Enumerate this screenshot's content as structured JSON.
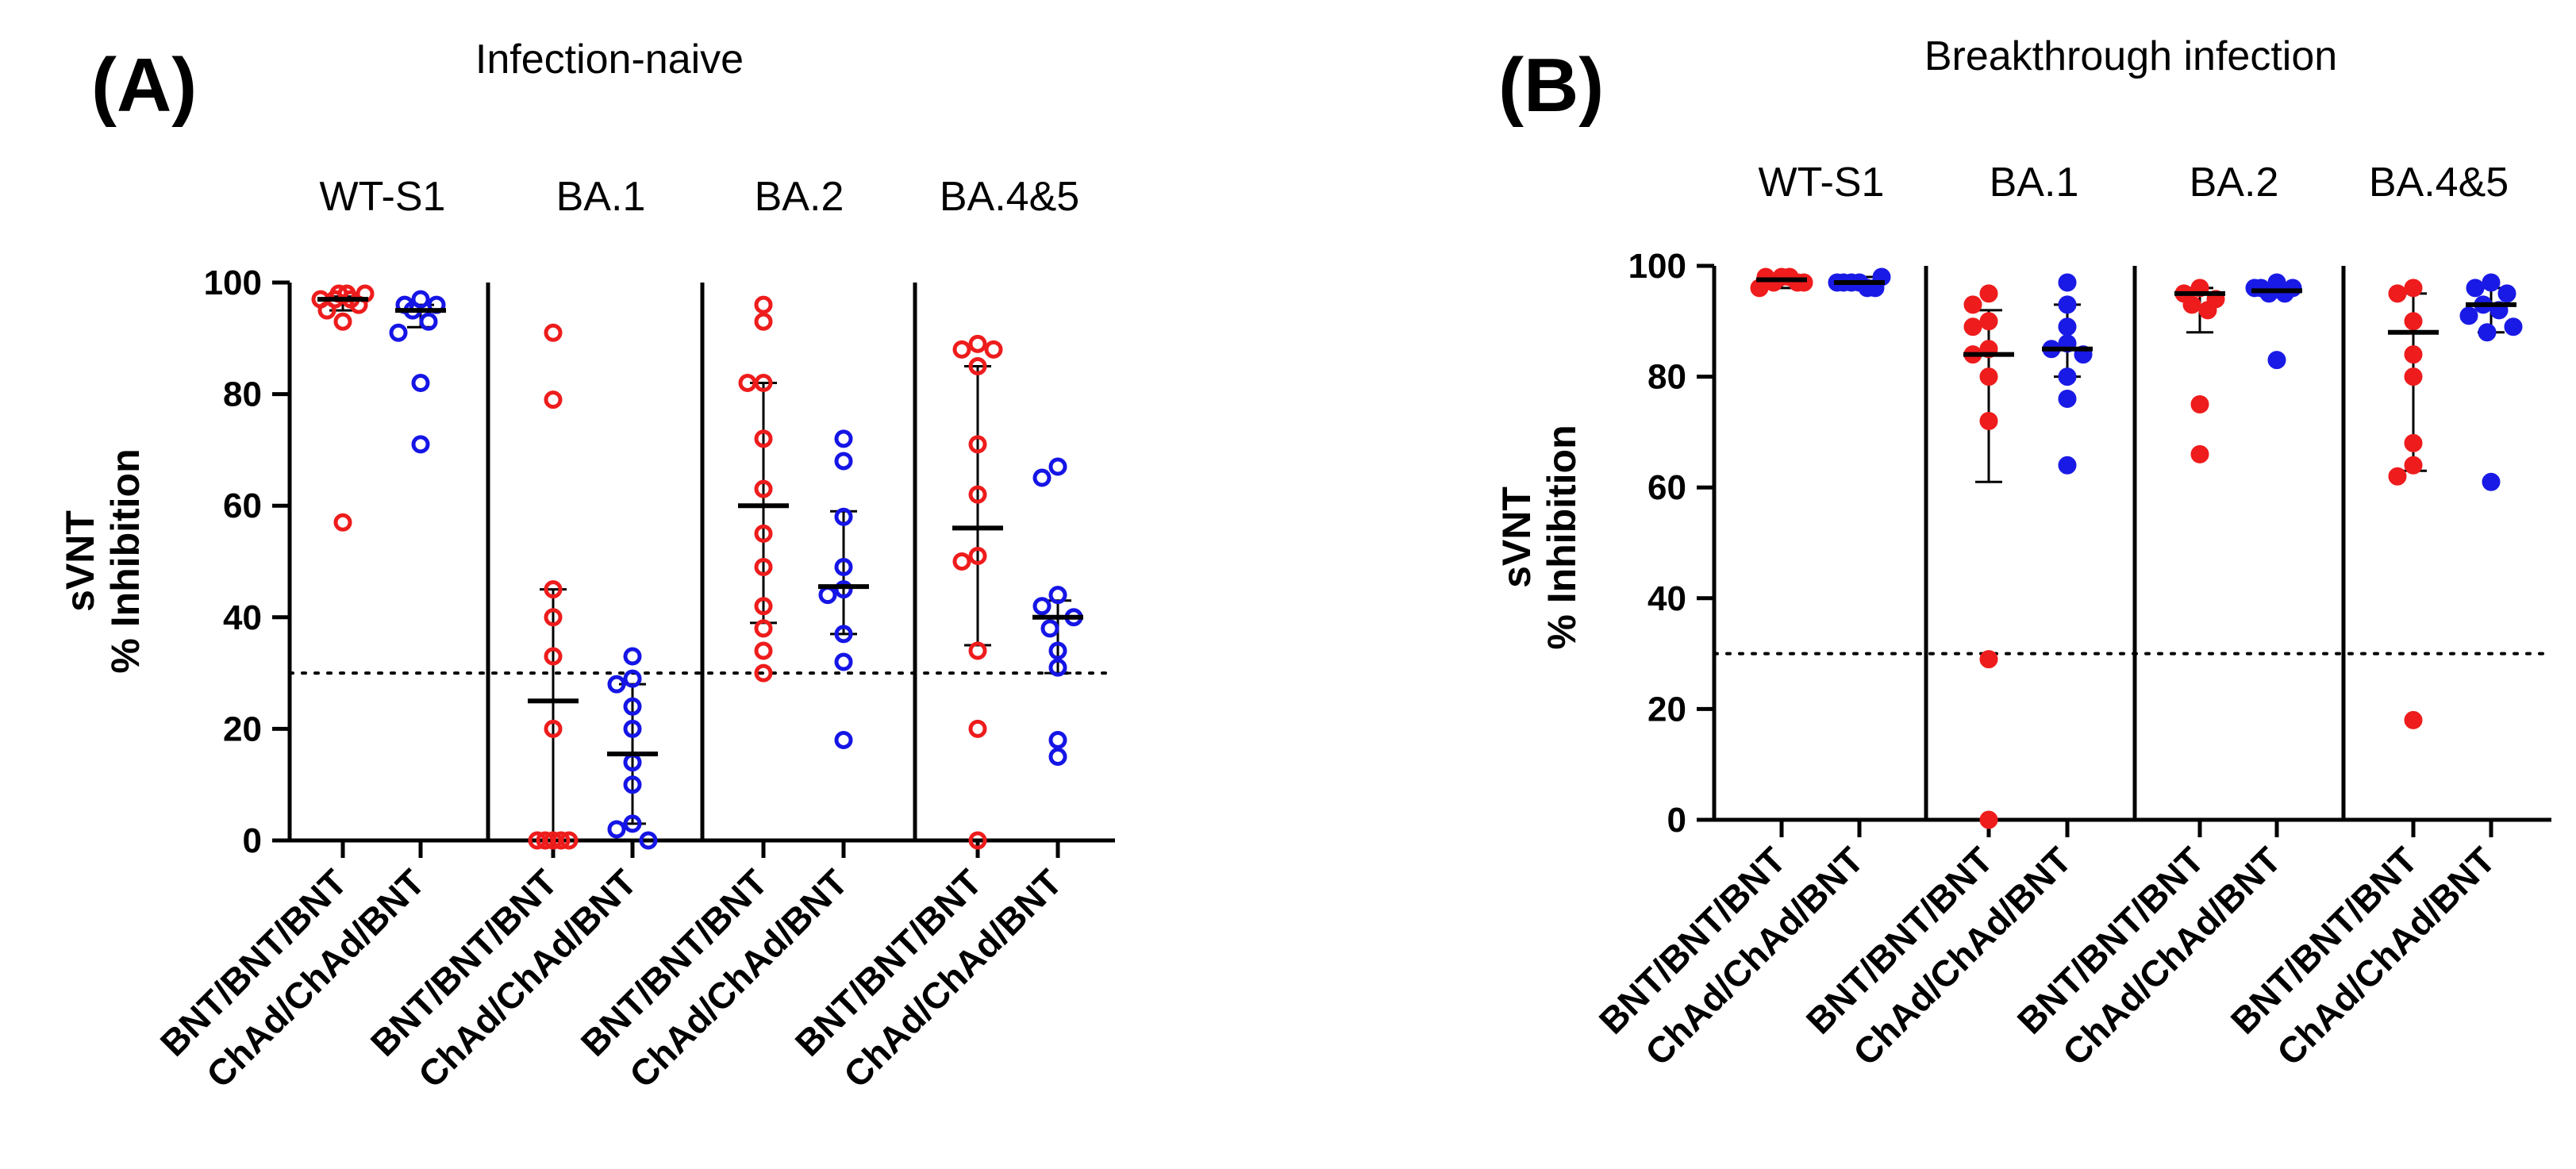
{
  "chart_data": [
    {
      "type": "scatter",
      "panel_label": "(A)",
      "title": "Infection-naive",
      "ylabel": [
        "sVNT",
        "% Inhibition"
      ],
      "ylim": [
        0,
        100
      ],
      "yticks": [
        0,
        20,
        40,
        60,
        80,
        100
      ],
      "reference_line": {
        "y": 30,
        "style": "dotted"
      },
      "groups": [
        "WT-S1",
        "BA.1",
        "BA.2",
        "BA.4&5"
      ],
      "categories": [
        "BNT/BNT/BNT",
        "ChAd/ChAd/BNT"
      ],
      "marker_style": "open",
      "series": [
        {
          "name": "BNT/BNT/BNT",
          "color": "#ee1c1c",
          "groups": [
            {
              "points": [
                57,
                93,
                95,
                96,
                97,
                97,
                97,
                98,
                98,
                98
              ],
              "median": 97,
              "range": [
                95,
                97.5
              ]
            },
            {
              "points": [
                91,
                79,
                45,
                40,
                33,
                20,
                0,
                0,
                0,
                0,
                0
              ],
              "median": 25,
              "range": [
                0,
                45
              ]
            },
            {
              "points": [
                96,
                93,
                82,
                82,
                72,
                63,
                55,
                49,
                42,
                38,
                34,
                30
              ],
              "median": 60,
              "range": [
                39,
                82
              ]
            },
            {
              "points": [
                89,
                88,
                88,
                85,
                71,
                62,
                51,
                50,
                34,
                20,
                0
              ],
              "median": 56,
              "range": [
                35,
                85
              ]
            }
          ]
        },
        {
          "name": "ChAd/ChAd/BNT",
          "color": "#1515e6",
          "groups": [
            {
              "points": [
                97,
                96,
                96,
                95,
                93,
                91,
                82,
                71
              ],
              "median": 95,
              "range": [
                92,
                96
              ]
            },
            {
              "points": [
                33,
                29,
                28,
                24,
                20,
                14,
                10,
                3,
                2,
                0
              ],
              "median": 15.5,
              "range": [
                3,
                28
              ]
            },
            {
              "points": [
                72,
                68,
                58,
                49,
                45,
                44,
                37,
                32,
                18
              ],
              "median": 45.5,
              "range": [
                37,
                59
              ]
            },
            {
              "points": [
                67,
                65,
                44,
                42,
                40,
                38,
                34,
                31,
                18,
                15
              ],
              "median": 40,
              "range": [
                30,
                43
              ]
            }
          ]
        }
      ]
    },
    {
      "type": "scatter",
      "panel_label": "(B)",
      "title": "Breakthrough infection",
      "ylabel": [
        "sVNT",
        "% Inhibition"
      ],
      "ylim": [
        0,
        100
      ],
      "yticks": [
        0,
        20,
        40,
        60,
        80,
        100
      ],
      "reference_line": {
        "y": 30,
        "style": "dotted"
      },
      "groups": [
        "WT-S1",
        "BA.1",
        "BA.2",
        "BA.4&5"
      ],
      "categories": [
        "BNT/BNT/BNT",
        "ChAd/ChAd/BNT"
      ],
      "marker_style": "filled",
      "series": [
        {
          "name": "BNT/BNT/BNT",
          "color": "#ee1c1c",
          "groups": [
            {
              "points": [
                98,
                98,
                97,
                97,
                98,
                96,
                97
              ],
              "median": 97.5,
              "range": [
                96,
                98
              ]
            },
            {
              "points": [
                95,
                93,
                90,
                89,
                85,
                84,
                80,
                72,
                29,
                0
              ],
              "median": 84,
              "range": [
                61,
                92
              ]
            },
            {
              "points": [
                96,
                95,
                94,
                93,
                92,
                75,
                66
              ],
              "median": 95,
              "range": [
                88,
                96
              ]
            },
            {
              "points": [
                96,
                95,
                90,
                84,
                80,
                68,
                64,
                62,
                18
              ],
              "median": 88,
              "range": [
                63,
                95
              ]
            }
          ]
        },
        {
          "name": "ChAd/ChAd/BNT",
          "color": "#1a1ae6",
          "groups": [
            {
              "points": [
                97,
                97,
                96,
                97,
                96,
                97,
                98
              ],
              "median": 97,
              "range": [
                96,
                98
              ]
            },
            {
              "points": [
                97,
                93,
                89,
                86,
                85,
                84,
                80,
                76,
                64
              ],
              "median": 85,
              "range": [
                80,
                93
              ]
            },
            {
              "points": [
                97,
                96,
                96,
                95,
                95,
                96,
                83
              ],
              "median": 95.5,
              "range": [
                95,
                96
              ]
            },
            {
              "points": [
                97,
                96,
                95,
                93,
                92,
                91,
                89,
                88,
                61
              ],
              "median": 93,
              "range": [
                88,
                96
              ]
            }
          ]
        }
      ]
    }
  ]
}
